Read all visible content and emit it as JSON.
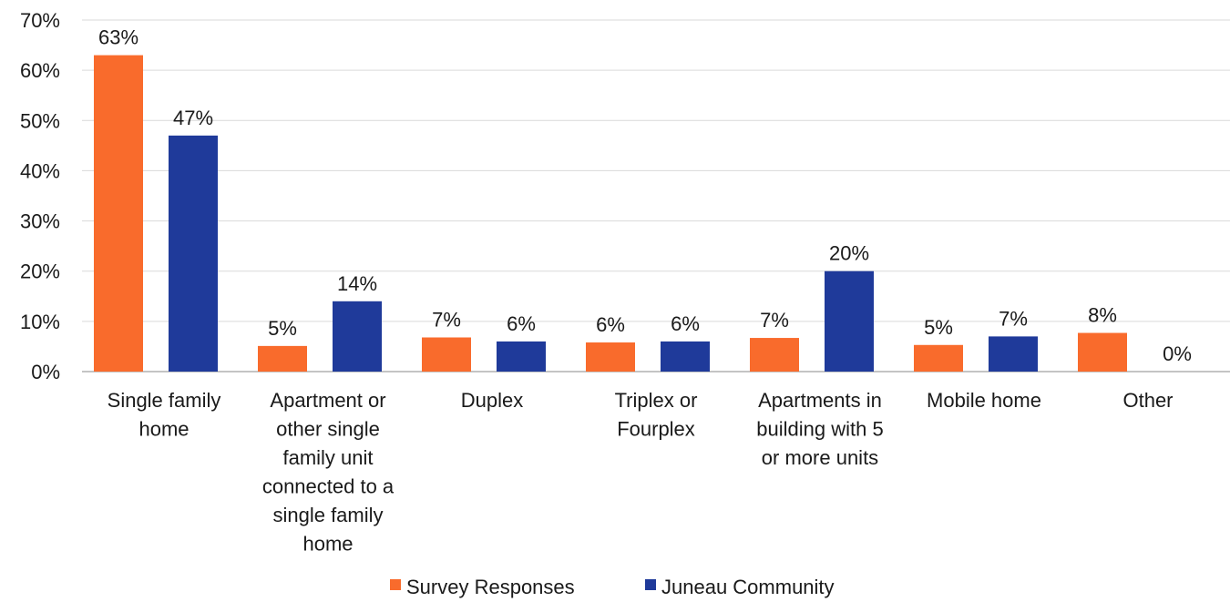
{
  "chart_data": {
    "type": "bar",
    "title": "",
    "xlabel": "",
    "ylabel": "",
    "ylim": [
      0,
      70
    ],
    "y_ticks": [
      0,
      10,
      20,
      30,
      40,
      50,
      60,
      70
    ],
    "y_tick_suffix": "%",
    "grid": true,
    "legend_position": "bottom",
    "categories": [
      "Single family home",
      "Apartment or other single family unit connected to a single family home",
      "Duplex",
      "Triplex or Fourplex",
      "Apartments in building with 5 or more units",
      "Mobile home",
      "Other"
    ],
    "category_lines": [
      [
        "Single family",
        "home"
      ],
      [
        "Apartment or",
        "other single",
        "family unit",
        "connected to a",
        "single family",
        "home"
      ],
      [
        "Duplex"
      ],
      [
        "Triplex or",
        "Fourplex"
      ],
      [
        "Apartments in",
        "building with 5",
        "or more units"
      ],
      [
        "Mobile home"
      ],
      [
        "Other"
      ]
    ],
    "series": [
      {
        "name": "Survey Responses",
        "color": "#F96B2C",
        "values": [
          63,
          5,
          7,
          6,
          7,
          5,
          8
        ],
        "plot_values": [
          63,
          5.1,
          6.8,
          5.8,
          6.7,
          5.3,
          7.7
        ],
        "labels": [
          "63%",
          "5%",
          "7%",
          "6%",
          "7%",
          "5%",
          "8%"
        ]
      },
      {
        "name": "Juneau Community",
        "color": "#1F3A9A",
        "values": [
          47,
          14,
          6,
          6,
          20,
          7,
          0
        ],
        "plot_values": [
          47,
          14,
          6,
          6,
          20,
          7,
          0
        ],
        "labels": [
          "47%",
          "14%",
          "6%",
          "6%",
          "20%",
          "7%",
          "0%"
        ]
      }
    ]
  }
}
